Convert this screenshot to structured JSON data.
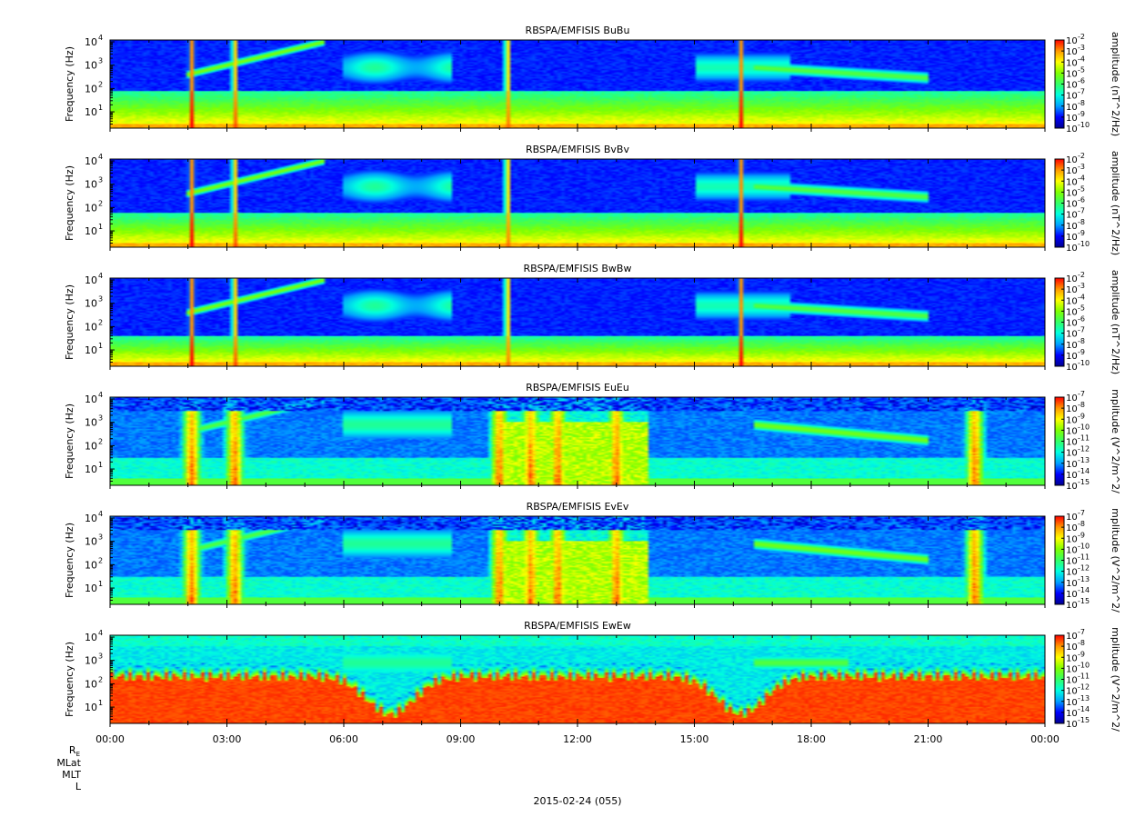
{
  "chart_data": [
    {
      "type": "heatmap",
      "title": "RBSPA/EMFISIS  BuBu",
      "ylabel": "Frequency (Hz)",
      "yscale": "log",
      "ylim": [
        2,
        12000
      ],
      "yticks": [
        "10",
        "10",
        "10",
        "10"
      ],
      "ytick_exponents": [
        "1",
        "2",
        "3",
        "4"
      ],
      "colorbar": {
        "label": "amplitude (nT^2/Hz)",
        "scale": "log",
        "range": [
          1e-10,
          0.01
        ],
        "ticks": [
          "10",
          "10",
          "10",
          "10",
          "10",
          "10",
          "10",
          "10",
          "10"
        ],
        "tick_exponents": [
          "-2",
          "-3",
          "-4",
          "-5",
          "-6",
          "-7",
          "-8",
          "-9",
          "-10"
        ]
      },
      "colormap": [
        "#00008f",
        "#0000ff",
        "#00a0ff",
        "#00ffe0",
        "#33ff66",
        "#80ff00",
        "#ffff00",
        "#ff9900",
        "#ff0000"
      ],
      "features": {
        "noise_floor_upper_hz": 80,
        "bursts_hour": [
          2.1,
          3.2,
          10.2,
          16.2
        ],
        "chorus_start_hour": 4.0,
        "chorus_end_hour": 17.0
      }
    },
    {
      "type": "heatmap",
      "title": "RBSPA/EMFISIS  BvBv",
      "ylabel": "Frequency (Hz)",
      "yscale": "log",
      "ylim": [
        2,
        12000
      ],
      "yticks": [
        "10",
        "10",
        "10",
        "10"
      ],
      "ytick_exponents": [
        "1",
        "2",
        "3",
        "4"
      ],
      "colorbar": {
        "label": "amplitude (nT^2/Hz)",
        "scale": "log",
        "range": [
          1e-10,
          0.01
        ],
        "ticks": [
          "10",
          "10",
          "10",
          "10",
          "10",
          "10",
          "10",
          "10",
          "10"
        ],
        "tick_exponents": [
          "-2",
          "-3",
          "-4",
          "-5",
          "-6",
          "-7",
          "-8",
          "-9",
          "-10"
        ]
      },
      "colormap": [
        "#00008f",
        "#0000ff",
        "#00a0ff",
        "#00ffe0",
        "#33ff66",
        "#80ff00",
        "#ffff00",
        "#ff9900",
        "#ff0000"
      ],
      "features": {
        "noise_floor_upper_hz": 60,
        "bursts_hour": [
          2.1,
          3.2,
          10.2,
          16.2
        ],
        "chorus_start_hour": 4.0,
        "chorus_end_hour": 17.0
      }
    },
    {
      "type": "heatmap",
      "title": "RBSPA/EMFISIS  BwBw",
      "ylabel": "Frequency (Hz)",
      "yscale": "log",
      "ylim": [
        2,
        12000
      ],
      "yticks": [
        "10",
        "10",
        "10",
        "10"
      ],
      "ytick_exponents": [
        "1",
        "2",
        "3",
        "4"
      ],
      "colorbar": {
        "label": "amplitude (nT^2/Hz)",
        "scale": "log",
        "range": [
          1e-10,
          0.01
        ],
        "ticks": [
          "10",
          "10",
          "10",
          "10",
          "10",
          "10",
          "10",
          "10",
          "10"
        ],
        "tick_exponents": [
          "-2",
          "-3",
          "-4",
          "-5",
          "-6",
          "-7",
          "-8",
          "-9",
          "-10"
        ]
      },
      "colormap": [
        "#00008f",
        "#0000ff",
        "#00a0ff",
        "#00ffe0",
        "#33ff66",
        "#80ff00",
        "#ffff00",
        "#ff9900",
        "#ff0000"
      ],
      "features": {
        "noise_floor_upper_hz": 40,
        "bursts_hour": [
          2.1,
          3.2,
          10.2,
          16.2
        ],
        "chorus_start_hour": 4.0,
        "chorus_end_hour": 17.0
      }
    },
    {
      "type": "heatmap",
      "title": "RBSPA/EMFISIS  EuEu",
      "ylabel": "Frequency (Hz)",
      "yscale": "log",
      "ylim": [
        2,
        12000
      ],
      "yticks": [
        "10",
        "10",
        "10",
        "10"
      ],
      "ytick_exponents": [
        "1",
        "2",
        "3",
        "4"
      ],
      "colorbar": {
        "label": "mplitude (V^2/m^2/",
        "scale": "log",
        "range": [
          1e-15,
          1e-07
        ],
        "ticks": [
          "10",
          "10",
          "10",
          "10",
          "10",
          "10",
          "10",
          "10",
          "10"
        ],
        "tick_exponents": [
          "-7",
          "-8",
          "-9",
          "-10",
          "-11",
          "-12",
          "-13",
          "-14",
          "-15"
        ]
      },
      "colormap": [
        "#00008f",
        "#0000ff",
        "#00a0ff",
        "#00ffe0",
        "#33ff66",
        "#80ff00",
        "#ffff00",
        "#ff9900",
        "#ff0000"
      ],
      "features": {
        "bursts_hour": [
          2.1,
          3.2,
          10.0,
          10.8,
          11.5,
          13.0,
          22.2
        ],
        "chorus_start_hour": 4.0,
        "chorus_end_hour": 17.0
      }
    },
    {
      "type": "heatmap",
      "title": "RBSPA/EMFISIS  EvEv",
      "ylabel": "Frequency (Hz)",
      "yscale": "log",
      "ylim": [
        2,
        12000
      ],
      "yticks": [
        "10",
        "10",
        "10",
        "10"
      ],
      "ytick_exponents": [
        "1",
        "2",
        "3",
        "4"
      ],
      "colorbar": {
        "label": "mplitude (V^2/m^2/",
        "scale": "log",
        "range": [
          1e-15,
          1e-07
        ],
        "ticks": [
          "10",
          "10",
          "10",
          "10",
          "10",
          "10",
          "10",
          "10",
          "10"
        ],
        "tick_exponents": [
          "-7",
          "-8",
          "-9",
          "-10",
          "-11",
          "-12",
          "-13",
          "-14",
          "-15"
        ]
      },
      "colormap": [
        "#00008f",
        "#0000ff",
        "#00a0ff",
        "#00ffe0",
        "#33ff66",
        "#80ff00",
        "#ffff00",
        "#ff9900",
        "#ff0000"
      ],
      "features": {
        "bursts_hour": [
          2.1,
          3.2,
          10.0,
          10.8,
          11.5,
          13.0,
          22.2
        ],
        "chorus_start_hour": 4.0,
        "chorus_end_hour": 17.0
      }
    },
    {
      "type": "heatmap",
      "title": "RBSPA/EMFISIS  EwEw",
      "ylabel": "Frequency (Hz)",
      "yscale": "log",
      "ylim": [
        2,
        12000
      ],
      "yticks": [
        "10",
        "10",
        "10",
        "10"
      ],
      "ytick_exponents": [
        "1",
        "2",
        "3",
        "4"
      ],
      "colorbar": {
        "label": "mplitude (V^2/m^2/",
        "scale": "log",
        "range": [
          1e-15,
          1e-07
        ],
        "ticks": [
          "10",
          "10",
          "10",
          "10",
          "10",
          "10",
          "10",
          "10",
          "10"
        ],
        "tick_exponents": [
          "-7",
          "-8",
          "-9",
          "-10",
          "-11",
          "-12",
          "-13",
          "-14",
          "-15"
        ]
      },
      "colormap": [
        "#00008f",
        "#0000ff",
        "#00a0ff",
        "#00ffe0",
        "#33ff66",
        "#80ff00",
        "#ffff00",
        "#ff9900",
        "#ff0000"
      ],
      "features": {
        "red_band_top_hz": 200,
        "dips_hour": [
          7.2,
          16.2
        ],
        "chorus_start_hour": 6.5,
        "chorus_end_hour": 18.5
      }
    }
  ],
  "xaxis": {
    "range_hours": [
      0,
      24
    ],
    "tick_labels": [
      "00:00",
      "03:00",
      "06:00",
      "09:00",
      "12:00",
      "15:00",
      "18:00",
      "21:00",
      "00:00"
    ],
    "extra_rows": [
      "R",
      "MLat",
      "MLT",
      "L"
    ],
    "re_subscript": "E",
    "date_label": "2015-02-24 (055)"
  }
}
